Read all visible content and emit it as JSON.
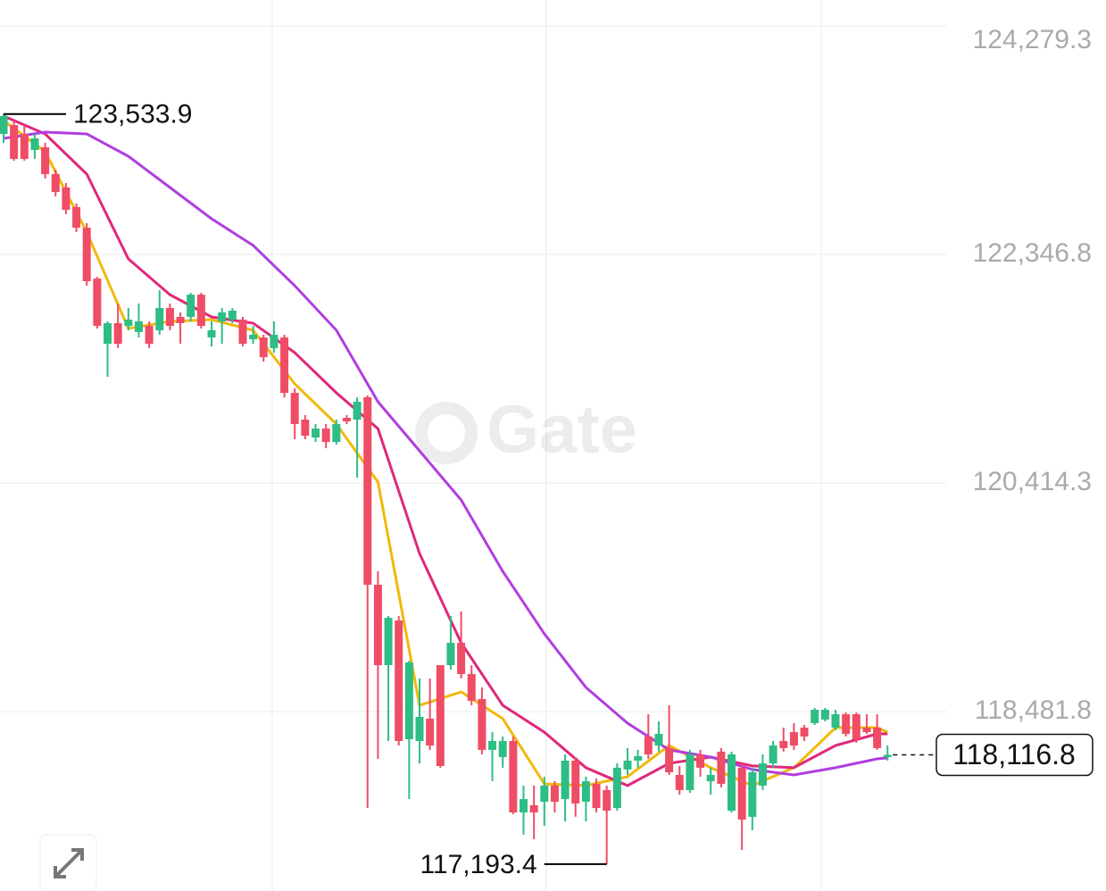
{
  "chart_data": {
    "type": "candlestick",
    "watermark": "Gate",
    "open": [
      123366,
      123441,
      123366,
      123230,
      123253,
      123026,
      122913,
      122747,
      122573,
      122143,
      121592,
      121766,
      121743,
      121691,
      121743,
      121706,
      121894,
      121819,
      121819,
      122007,
      121645,
      121781,
      121796,
      121796,
      121630,
      121645,
      121555,
      121645,
      121177,
      120951,
      120800,
      120875,
      120762,
      120966,
      120951,
      121140,
      119555,
      118875,
      119253,
      118249,
      118234,
      118423,
      118875,
      118875,
      119064,
      118800,
      118589,
      118159,
      118098,
      118234,
      117630,
      117691,
      117721,
      117857,
      117743,
      118068,
      117721,
      117872,
      117819,
      117668,
      117993,
      118068,
      118272,
      118196,
      118174,
      117947,
      117819,
      118121,
      117894,
      118144,
      117645,
      118008,
      117593,
      117857,
      118045,
      118234,
      118309,
      118347,
      118385,
      118415,
      118347,
      118460,
      118460,
      118347,
      118347,
      118098
    ],
    "high": [
      123533.9,
      123479,
      123441,
      123366,
      123290,
      123064,
      122951,
      122777,
      122611,
      122158,
      121781,
      121932,
      121894,
      121932,
      121781,
      122045,
      121932,
      121857,
      122023,
      122023,
      121781,
      121894,
      121894,
      121819,
      121743,
      121668,
      121781,
      121668,
      121215,
      120989,
      120913,
      120913,
      120951,
      120989,
      121140,
      121155,
      119668,
      119291,
      119291,
      118913,
      118762,
      118762,
      118875,
      119291,
      119328,
      118875,
      118687,
      118309,
      118272,
      118272,
      117857,
      117857,
      117932,
      117894,
      118121,
      118098,
      117932,
      117917,
      117857,
      118045,
      118174,
      118159,
      118460,
      118400,
      118536,
      118023,
      118159,
      118159,
      118008,
      118174,
      118144,
      118045,
      118008,
      118121,
      118234,
      118347,
      118385,
      118370,
      118513,
      118513,
      118498,
      118475,
      118475,
      118460,
      118460,
      118196
    ],
    "low": [
      123290,
      123140,
      123140,
      123155,
      122989,
      122838,
      122687,
      122536,
      122083,
      121721,
      121313,
      121555,
      121706,
      121645,
      121555,
      121668,
      121706,
      121592,
      121781,
      121721,
      121570,
      121592,
      121766,
      121570,
      121592,
      121441,
      121517,
      121140,
      120785,
      120785,
      120762,
      120709,
      120740,
      120913,
      120460,
      117668,
      118083,
      118234,
      118196,
      117743,
      118045,
      118159,
      118008,
      118838,
      118762,
      118536,
      118121,
      117894,
      118008,
      117615,
      117442,
      117404,
      117517,
      117630,
      117555,
      117593,
      117555,
      117630,
      117193.4,
      117645,
      117947,
      118008,
      118083,
      118144,
      117947,
      117781,
      117796,
      117932,
      117781,
      117842,
      117630,
      117313,
      117479,
      117819,
      118008,
      118144,
      118159,
      118234,
      118370,
      118400,
      118325,
      118272,
      118219,
      118294,
      118159,
      118068
    ],
    "close": [
      123517,
      123155,
      123155,
      123328,
      123026,
      122875,
      122724,
      122573,
      122121,
      121743,
      121766,
      121592,
      121796,
      121781,
      121592,
      121894,
      121743,
      121766,
      122007,
      121743,
      121706,
      121857,
      121872,
      121592,
      121668,
      121479,
      121668,
      121177,
      120913,
      120815,
      120875,
      120762,
      120913,
      120936,
      121102,
      119555,
      118875,
      119275,
      118234,
      118898,
      118438,
      118196,
      118023,
      119064,
      118800,
      118574,
      118159,
      118234,
      118234,
      117630,
      117743,
      117630,
      117857,
      117721,
      118068,
      117706,
      117894,
      117668,
      117645,
      118008,
      118068,
      118106,
      118121,
      118294,
      117970,
      117819,
      118121,
      118008,
      117947,
      117872,
      118121,
      117570,
      117970,
      118045,
      118196,
      118174,
      118196,
      118272,
      118498,
      118498,
      118460,
      118294,
      118249,
      118309,
      118174,
      118116.8
    ],
    "up_color": "#2ebd85",
    "down_color": "#ef4d65",
    "moving_averages": [
      {
        "color": "#f0b90b",
        "x": [
          0,
          4,
          8,
          12,
          16,
          20,
          24,
          28,
          32,
          36,
          40,
          44,
          48,
          52,
          56,
          60,
          64,
          68,
          72,
          76,
          80,
          84,
          85
        ],
        "values": [
          123479,
          123215,
          122536,
          121721,
          121781,
          121796,
          121706,
          121253,
          120913,
          120423,
          118536,
          118649,
          118423,
          117872,
          117857,
          117932,
          118196,
          118008,
          117857,
          118008,
          118347,
          118347,
          118309
        ]
      },
      {
        "color": "#e0287a",
        "x": [
          0,
          4,
          8,
          12,
          16,
          20,
          24,
          28,
          32,
          36,
          40,
          44,
          48,
          52,
          56,
          60,
          64,
          68,
          72,
          76,
          80,
          84,
          85
        ],
        "values": [
          123517,
          123366,
          123026,
          122309,
          122007,
          121819,
          121766,
          121517,
          121177,
          120875,
          119819,
          119064,
          118536,
          118309,
          118008,
          117857,
          118045,
          118098,
          118023,
          118008,
          118196,
          118294,
          118294
        ]
      },
      {
        "color": "#b03ee0",
        "x": [
          0,
          4,
          8,
          12,
          16,
          20,
          24,
          28,
          32,
          36,
          40,
          44,
          48,
          52,
          56,
          60,
          64,
          68,
          72,
          76,
          80,
          84,
          85
        ],
        "values": [
          123328,
          123381,
          123366,
          123177,
          122913,
          122649,
          122423,
          122083,
          121706,
          121102,
          120687,
          120272,
          119668,
          119140,
          118687,
          118385,
          118159,
          118098,
          117993,
          117947,
          118008,
          118083,
          118091
        ]
      }
    ],
    "max_label": "123,533.9",
    "min_label": "117,193.4",
    "last_label": "118,116.8",
    "ylim": [
      116966,
      124498
    ],
    "yticks": [
      {
        "value": 118481.8,
        "label": "118,481.8"
      },
      {
        "value": 120414.3,
        "label": "120,414.3"
      },
      {
        "value": 122346.8,
        "label": "122,346.8"
      },
      {
        "value": 124279.3,
        "label": "124,279.3"
      }
    ],
    "grid": true
  }
}
